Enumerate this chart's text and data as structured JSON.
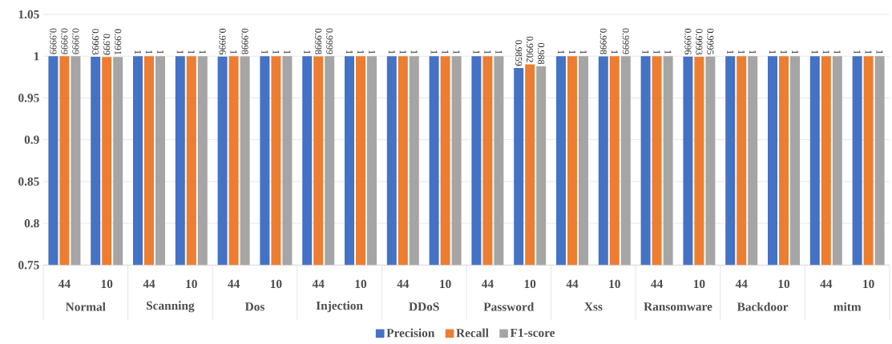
{
  "chart_data": {
    "type": "bar",
    "categories": [
      "44",
      "10",
      "44",
      "10",
      "44",
      "10",
      "44",
      "10",
      "44",
      "10",
      "44",
      "10",
      "44",
      "10",
      "44",
      "10",
      "44",
      "10",
      "44",
      "10"
    ],
    "annotations": [
      "Normal",
      "Scanning",
      "Dos",
      "Injection",
      "DDoS",
      "Password",
      "Xss",
      "Ransomware",
      "Backdoor",
      "mitm"
    ],
    "series": [
      {
        "name": "Precision",
        "color": "#4472c4",
        "values": [
          0.9999,
          0.9993,
          1,
          1,
          0.9996,
          1,
          1,
          1,
          1,
          1,
          1,
          0.9859,
          1,
          0.9998,
          1,
          0.9996,
          1,
          1,
          1,
          1
        ],
        "value_labels": [
          "0.9999",
          "0.9993",
          "1",
          "1",
          "0.9996",
          "1",
          "1",
          "1",
          "1",
          "1",
          "1",
          "0.9859",
          "1",
          "0.9998",
          "1",
          "0.9996",
          "1",
          "1",
          "1",
          "1"
        ]
      },
      {
        "name": "Recall",
        "color": "#ed7d31",
        "values": [
          0.9999,
          0.999,
          1,
          1,
          1,
          1,
          0.9998,
          1,
          1,
          1,
          1,
          0.9902,
          1,
          1,
          1,
          0.9993,
          1,
          1,
          1,
          1
        ],
        "value_labels": [
          "0.9999",
          "0.999",
          "1",
          "1",
          "1",
          "1",
          "0.9998",
          "1",
          "1",
          "1",
          "1",
          "0.9902",
          "1",
          "1",
          "1",
          "0.9993",
          "1",
          "1",
          "1",
          "1"
        ]
      },
      {
        "name": "F1-score",
        "color": "#a5a5a5",
        "values": [
          0.9999,
          0.9991,
          1,
          1,
          0.9998,
          1,
          0.9999,
          1,
          1,
          1,
          1,
          0.988,
          1,
          0.9999,
          1,
          0.9995,
          1,
          1,
          1,
          1
        ],
        "value_labels": [
          "0.9999",
          "0.9991",
          "1",
          "1",
          "0.9998",
          "1",
          "0.9999",
          "1",
          "1",
          "1",
          "1",
          "0.988",
          "1",
          "0.9999",
          "1",
          "0.9995",
          "1",
          "1",
          "1",
          "1"
        ]
      }
    ],
    "ylim": [
      0.75,
      1.05
    ],
    "yticks": [
      0.75,
      0.8,
      0.85,
      0.9,
      0.95,
      1,
      1.05
    ],
    "grid": "y",
    "legend": "bottom"
  }
}
